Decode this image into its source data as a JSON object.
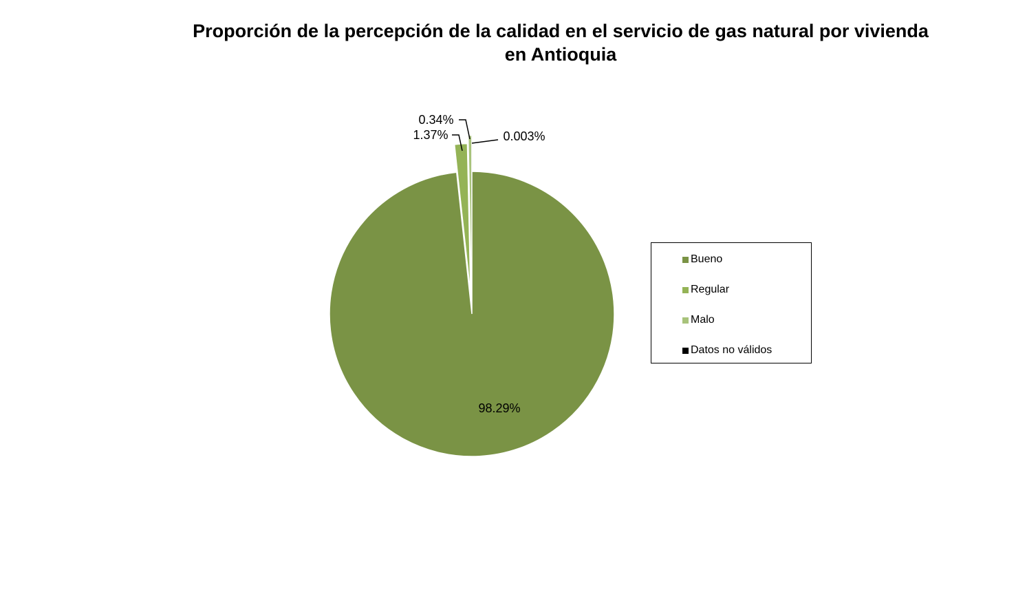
{
  "chart_data": {
    "type": "pie",
    "title_lines": [
      "Proporción de la percepción de la calidad en el servicio de gas natural por vivienda",
      "en Antioquia"
    ],
    "series": [
      {
        "name": "Bueno",
        "value": 98.29,
        "label": "98.29%",
        "color": "#7a9345"
      },
      {
        "name": "Regular",
        "value": 1.37,
        "label": "1.37%",
        "color": "#94b356"
      },
      {
        "name": "Malo",
        "value": 0.34,
        "label": "0.34%",
        "color": "#a8c37b"
      },
      {
        "name": "Datos no válidos",
        "value": 0.003,
        "label": "0.003%",
        "color": "#000000"
      }
    ],
    "legend_position": "right"
  }
}
